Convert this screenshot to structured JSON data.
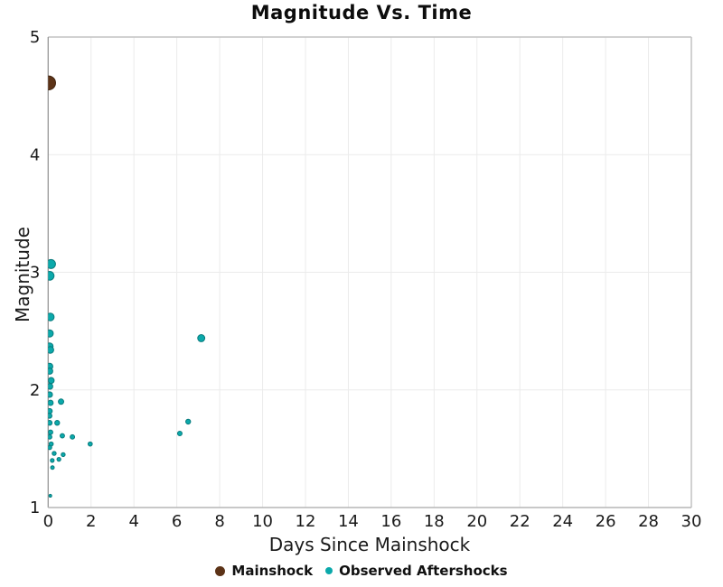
{
  "figure": {
    "title": "Magnitude Vs. Time",
    "xlabel": "Days Since Mainshock",
    "ylabel": "Magnitude"
  },
  "legend": {
    "items": [
      {
        "label": "Mainshock",
        "color": "#5C3317",
        "edge": "#40230E"
      },
      {
        "label": "Observed Aftershocks",
        "color": "#0BA9AB",
        "edge": "#087A7C"
      }
    ]
  },
  "colors": {
    "mainshock": "#5C3317",
    "aftershock": "#0BA9AB",
    "grid": "#EBEBEB",
    "border": "#C2C2C2",
    "axis_left": "#999999",
    "axis_bottom": "#B5B5B5",
    "text": "#1A1A1A"
  },
  "chart_data": {
    "type": "scatter",
    "title": "Magnitude Vs. Time",
    "xlabel": "Days Since Mainshock",
    "ylabel": "Magnitude",
    "xlim": [
      0,
      30
    ],
    "ylim": [
      1,
      5
    ],
    "x_ticks": [
      0,
      2,
      4,
      6,
      8,
      10,
      12,
      14,
      16,
      18,
      20,
      22,
      24,
      26,
      28,
      30
    ],
    "y_ticks": [
      1,
      2,
      3,
      4,
      5
    ],
    "grid": true,
    "legend_position": "bottom",
    "marker_size_by_magnitude": true,
    "series": [
      {
        "name": "Observed Aftershocks",
        "color": "#0BA9AB",
        "edge": "#087A7C",
        "points": [
          [
            0.13,
            3.07
          ],
          [
            0.07,
            2.97
          ],
          [
            0.1,
            2.62
          ],
          [
            0.07,
            2.48
          ],
          [
            0.07,
            2.37
          ],
          [
            0.1,
            2.34
          ],
          [
            0.07,
            2.2
          ],
          [
            0.07,
            2.16
          ],
          [
            0.14,
            2.08
          ],
          [
            0.08,
            2.03
          ],
          [
            0.07,
            1.96
          ],
          [
            0.6,
            1.9
          ],
          [
            0.11,
            1.89
          ],
          [
            0.07,
            1.82
          ],
          [
            0.06,
            1.78
          ],
          [
            0.42,
            1.72
          ],
          [
            0.07,
            1.72
          ],
          [
            0.11,
            1.64
          ],
          [
            0.66,
            1.61
          ],
          [
            1.13,
            1.6
          ],
          [
            0.07,
            1.6
          ],
          [
            0.14,
            1.54
          ],
          [
            1.96,
            1.54
          ],
          [
            0.07,
            1.51
          ],
          [
            0.28,
            1.46
          ],
          [
            0.7,
            1.45
          ],
          [
            0.5,
            1.41
          ],
          [
            0.19,
            1.4
          ],
          [
            0.2,
            1.34
          ],
          [
            0.1,
            1.1
          ],
          [
            6.14,
            1.63
          ],
          [
            6.53,
            1.73
          ],
          [
            7.14,
            2.44
          ]
        ]
      },
      {
        "name": "Mainshock",
        "color": "#5C3317",
        "edge": "#40230E",
        "points": [
          [
            0.02,
            4.61
          ]
        ]
      }
    ]
  }
}
